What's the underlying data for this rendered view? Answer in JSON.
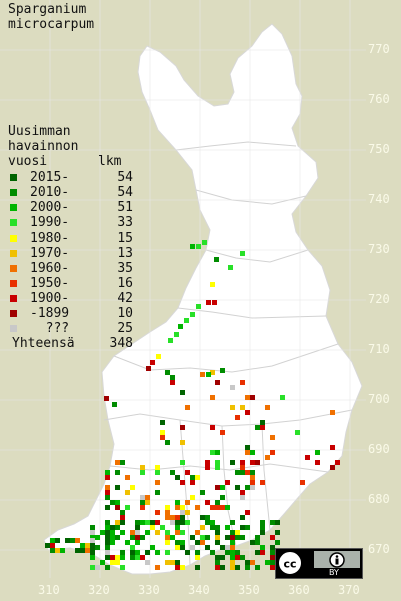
{
  "title_line1": "Sparganium",
  "title_line2": "microcarpum",
  "legend": {
    "heading_line1": "Uusimman",
    "heading_line2": "havainnon",
    "heading_line3": "vuosi",
    "count_header": "lkm",
    "rows": [
      {
        "label": "2015-",
        "count": "54",
        "color": "#006400"
      },
      {
        "label": "2010-",
        "count": "54",
        "color": "#008c00"
      },
      {
        "label": "2000-",
        "count": "51",
        "color": "#00b400"
      },
      {
        "label": "1990-",
        "count": "33",
        "color": "#28e028"
      },
      {
        "label": "1980-",
        "count": "15",
        "color": "#ffff00"
      },
      {
        "label": "1970-",
        "count": "13",
        "color": "#f0c000"
      },
      {
        "label": "1960-",
        "count": "35",
        "color": "#f07000"
      },
      {
        "label": "1950-",
        "count": "16",
        "color": "#e83000"
      },
      {
        "label": "1900-",
        "count": "42",
        "color": "#c80000"
      },
      {
        "label": "-1899",
        "count": "10",
        "color": "#a00000"
      },
      {
        "label": "  ???",
        "count": "25",
        "color": "#c8c8c8"
      }
    ],
    "total_label": "Yhteensä",
    "total_count": "348"
  },
  "grid_y_labels": [
    "770",
    "760",
    "750",
    "740",
    "730",
    "720",
    "710",
    "700",
    "690",
    "680",
    "670"
  ],
  "grid_x_labels": [
    "310",
    "320",
    "330",
    "340",
    "350",
    "360",
    "370"
  ],
  "license": {
    "icon_left": "cc-icon",
    "icon_right": "attribution-icon",
    "text": "BY"
  }
}
